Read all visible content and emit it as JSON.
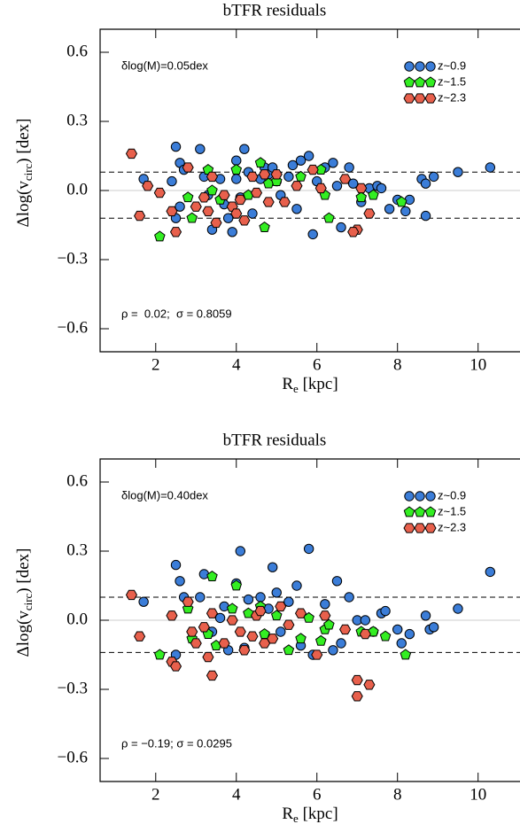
{
  "chart_data": [
    {
      "type": "scatter",
      "title": "bTFR residuals",
      "xlabel": [
        "R",
        "e",
        " [kpc]"
      ],
      "ylabel": [
        "Δlog(v",
        "circ",
        ") [dex]"
      ],
      "xlim": [
        0.62,
        11.04
      ],
      "ylim": [
        -0.7,
        0.7
      ],
      "xticks": [
        2,
        4,
        6,
        8,
        10
      ],
      "yticks": [
        {
          "value": -0.6,
          "label": "−0.6"
        },
        {
          "value": -0.3,
          "label": "−0.3"
        },
        {
          "value": 0,
          "label": "0.0"
        },
        0.3,
        0.6
      ],
      "hlines": [
        {
          "value": 0,
          "color": "#cccccc",
          "dash": false
        },
        {
          "value": 0.08,
          "color": "#000000",
          "dash": true
        },
        {
          "value": -0.12,
          "color": "#000000",
          "dash": true
        }
      ],
      "annotations": [
        "δlog(M)=0.05dex",
        "ρ =  0.02;  σ = 0.8059"
      ],
      "legend": "upper right",
      "series": [
        {
          "name": "z~0.9",
          "color": "#3b7dd8",
          "marker": "circle",
          "x": [
            2.5,
            2.6,
            2.7,
            2.4,
            2.6,
            2.5,
            3.1,
            3.2,
            3.3,
            3.4,
            3.6,
            3.7,
            3.8,
            3.9,
            4.0,
            4.0,
            4.2,
            4.3,
            4.1,
            4.4,
            4.6,
            4.7,
            4.8,
            4.9,
            5.0,
            5.1,
            5.3,
            5.4,
            5.5,
            5.6,
            5.8,
            5.9,
            6.0,
            6.2,
            6.4,
            6.5,
            6.6,
            6.8,
            6.9,
            7.1,
            7.3,
            7.5,
            7.6,
            7.8,
            8.0,
            8.2,
            8.3,
            8.6,
            8.7,
            8.7,
            8.9,
            9.5,
            10.3,
            1.7
          ],
          "values": [
            0.19,
            0.12,
            0.09,
            0.04,
            -0.07,
            -0.12,
            0.18,
            0.06,
            -0.02,
            -0.17,
            0.05,
            -0.06,
            -0.12,
            -0.18,
            0.05,
            0.13,
            0.18,
            0.08,
            -0.03,
            -0.1,
            0.05,
            0.1,
            0.07,
            0.1,
            0.04,
            -0.02,
            0.06,
            0.11,
            -0.08,
            0.13,
            0.15,
            -0.19,
            0.04,
            0.1,
            0.12,
            0.02,
            -0.16,
            0.1,
            0.03,
            -0.05,
            0.01,
            0.02,
            0.01,
            -0.08,
            -0.04,
            -0.09,
            -0.04,
            0.05,
            0.03,
            -0.11,
            0.06,
            0.08,
            0.1,
            0.05
          ]
        },
        {
          "name": "z~1.5",
          "color": "#33ee22",
          "marker": "pentagon",
          "x": [
            2.1,
            2.8,
            2.9,
            3.3,
            3.4,
            3.6,
            4.0,
            4.3,
            4.6,
            4.7,
            4.8,
            5.0,
            5.6,
            6.1,
            6.2,
            6.3,
            7.1,
            7.4,
            8.1
          ],
          "values": [
            -0.2,
            -0.03,
            -0.12,
            0.09,
            0.0,
            -0.04,
            0.09,
            -0.02,
            0.12,
            -0.16,
            0.03,
            0.04,
            0.06,
            0.09,
            -0.02,
            -0.12,
            -0.03,
            -0.02,
            -0.05
          ]
        },
        {
          "name": "z~2.3",
          "color": "#e8604c",
          "marker": "hexagon",
          "x": [
            1.4,
            1.6,
            1.8,
            2.1,
            2.4,
            2.5,
            2.8,
            3.0,
            3.2,
            3.3,
            3.4,
            3.5,
            3.7,
            3.9,
            4.0,
            4.1,
            4.2,
            4.4,
            4.5,
            4.7,
            4.8,
            5.0,
            5.2,
            5.5,
            5.9,
            6.1,
            6.7,
            7.0,
            7.1,
            7.3,
            6.9
          ],
          "values": [
            0.16,
            -0.11,
            0.02,
            -0.01,
            -0.09,
            -0.18,
            0.1,
            -0.07,
            -0.03,
            -0.09,
            0.06,
            -0.14,
            -0.02,
            -0.07,
            -0.1,
            -0.04,
            -0.13,
            0.06,
            -0.01,
            0.07,
            -0.05,
            0.07,
            -0.05,
            0.02,
            0.09,
            0.01,
            0.05,
            -0.17,
            0.01,
            -0.1,
            -0.18
          ]
        }
      ]
    },
    {
      "type": "scatter",
      "title": "bTFR residuals",
      "xlabel": [
        "R",
        "e",
        " [kpc]"
      ],
      "ylabel": [
        "Δlog(v",
        "circ",
        ") [dex]"
      ],
      "xlim": [
        0.62,
        11.04
      ],
      "ylim": [
        -0.7,
        0.7
      ],
      "xticks": [
        2,
        4,
        6,
        8,
        10
      ],
      "yticks": [
        {
          "value": -0.6,
          "label": "−0.6"
        },
        {
          "value": -0.3,
          "label": "−0.3"
        },
        {
          "value": 0,
          "label": "0.0"
        },
        0.3,
        0.6
      ],
      "hlines": [
        {
          "value": 0,
          "color": "#cccccc",
          "dash": false
        },
        {
          "value": 0.1,
          "color": "#000000",
          "dash": true
        },
        {
          "value": -0.14,
          "color": "#000000",
          "dash": true
        }
      ],
      "annotations": [
        "δlog(M)=0.40dex",
        "ρ = −0.19; σ = 0.0295"
      ],
      "legend": "upper right",
      "series": [
        {
          "name": "z~0.9",
          "color": "#3b7dd8",
          "marker": "circle",
          "x": [
            1.7,
            2.5,
            2.6,
            2.7,
            2.5,
            2.4,
            3.1,
            3.2,
            3.4,
            3.6,
            3.7,
            3.8,
            4.0,
            4.1,
            4.3,
            4.2,
            4.6,
            4.8,
            4.9,
            5.0,
            5.1,
            5.3,
            5.5,
            5.6,
            5.8,
            5.9,
            6.2,
            6.4,
            6.5,
            6.6,
            6.8,
            7.0,
            7.2,
            7.4,
            7.6,
            7.7,
            8.0,
            8.1,
            8.3,
            8.7,
            8.8,
            8.9,
            9.5,
            10.3
          ],
          "values": [
            0.08,
            0.24,
            0.17,
            0.1,
            -0.15,
            0.02,
            0.1,
            0.2,
            -0.05,
            0.01,
            0.06,
            -0.13,
            0.16,
            0.3,
            0.09,
            -0.12,
            0.1,
            0.05,
            0.23,
            0.12,
            -0.05,
            0.08,
            0.15,
            -0.11,
            0.31,
            -0.15,
            0.07,
            -0.13,
            0.17,
            -0.1,
            0.1,
            0.0,
            0.0,
            -0.05,
            0.03,
            0.04,
            -0.04,
            -0.1,
            -0.06,
            0.02,
            -0.04,
            -0.03,
            0.05,
            0.21
          ]
        },
        {
          "name": "z~1.5",
          "color": "#33ee22",
          "marker": "pentagon",
          "x": [
            2.1,
            2.8,
            2.9,
            3.3,
            3.4,
            3.5,
            3.9,
            4.0,
            4.3,
            4.6,
            4.7,
            5.0,
            5.3,
            5.6,
            5.8,
            6.1,
            6.2,
            6.3,
            7.1,
            7.4,
            7.7,
            8.2
          ],
          "values": [
            -0.15,
            0.05,
            -0.08,
            -0.06,
            0.19,
            -0.11,
            0.05,
            0.15,
            0.03,
            0.06,
            -0.06,
            0.02,
            -0.13,
            -0.08,
            0.01,
            -0.09,
            -0.04,
            -0.02,
            -0.05,
            -0.05,
            -0.07,
            -0.15
          ]
        },
        {
          "name": "z~2.3",
          "color": "#e8604c",
          "marker": "hexagon",
          "x": [
            1.4,
            1.6,
            2.4,
            2.5,
            2.4,
            2.8,
            2.9,
            3.0,
            3.2,
            3.3,
            3.4,
            3.4,
            3.7,
            3.9,
            4.1,
            4.2,
            4.4,
            4.5,
            4.6,
            4.7,
            4.9,
            5.1,
            5.3,
            5.6,
            6.2,
            6.7,
            7.0,
            7.0,
            7.3,
            7.2,
            6.0
          ],
          "values": [
            0.11,
            -0.07,
            -0.18,
            -0.2,
            0.02,
            0.08,
            -0.05,
            -0.1,
            -0.03,
            -0.16,
            -0.24,
            0.03,
            -0.1,
            0.0,
            -0.05,
            -0.13,
            -0.07,
            0.02,
            0.04,
            -0.1,
            -0.08,
            0.06,
            -0.02,
            0.03,
            0.02,
            -0.04,
            -0.26,
            -0.33,
            -0.28,
            -0.06,
            -0.15
          ]
        }
      ]
    }
  ]
}
